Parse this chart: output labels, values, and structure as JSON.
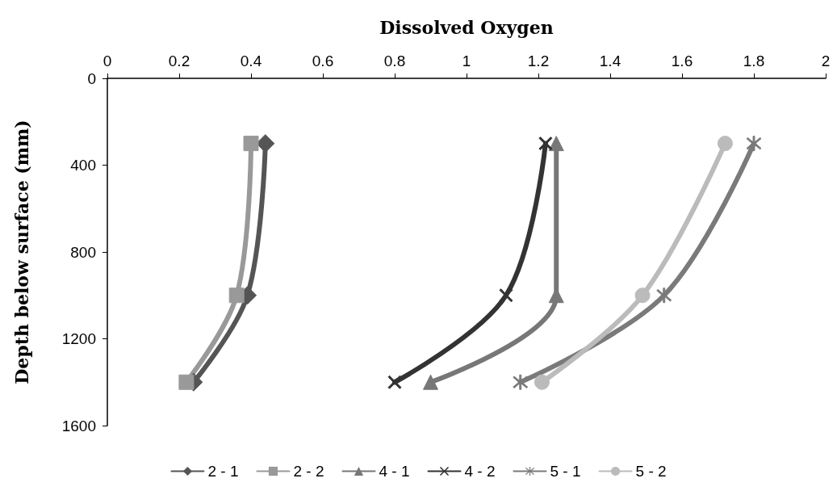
{
  "chart_data": {
    "type": "line",
    "xlabel": "Dissolved Oxygen",
    "ylabel": "Depth below surface (mm)",
    "xlim": [
      0,
      2
    ],
    "xticks": [
      0,
      0.2,
      0.4,
      0.6,
      0.8,
      1,
      1.2,
      1.4,
      1.6,
      1.8,
      2
    ],
    "ylim": [
      1600,
      0
    ],
    "yticks": [
      0,
      400,
      800,
      1200,
      1600
    ],
    "legend": "bottom",
    "line_style": "solid",
    "series": [
      {
        "name": "2 - 1",
        "color": "#555555",
        "marker": "diamond",
        "x": [
          0.44,
          0.39,
          0.24
        ],
        "values": [
          300,
          1000,
          1400
        ]
      },
      {
        "name": "2 - 2",
        "color": "#999999",
        "marker": "square",
        "x": [
          0.4,
          0.36,
          0.22
        ],
        "values": [
          300,
          1000,
          1400
        ]
      },
      {
        "name": "4 - 1",
        "color": "#777777",
        "marker": "triangle",
        "x": [
          1.25,
          1.25,
          0.9
        ],
        "values": [
          300,
          1000,
          1400
        ]
      },
      {
        "name": "4 - 2",
        "color": "#333333",
        "marker": "cross",
        "x": [
          1.22,
          1.11,
          0.8
        ],
        "values": [
          300,
          1000,
          1400
        ]
      },
      {
        "name": "5 - 1",
        "color": "#7a7a7a",
        "marker": "star",
        "x": [
          1.8,
          1.55,
          1.15
        ],
        "values": [
          300,
          1000,
          1400
        ]
      },
      {
        "name": "5 - 2",
        "color": "#bbbbbb",
        "marker": "circle",
        "x": [
          1.72,
          1.49,
          1.21
        ],
        "values": [
          300,
          1000,
          1400
        ]
      }
    ]
  }
}
